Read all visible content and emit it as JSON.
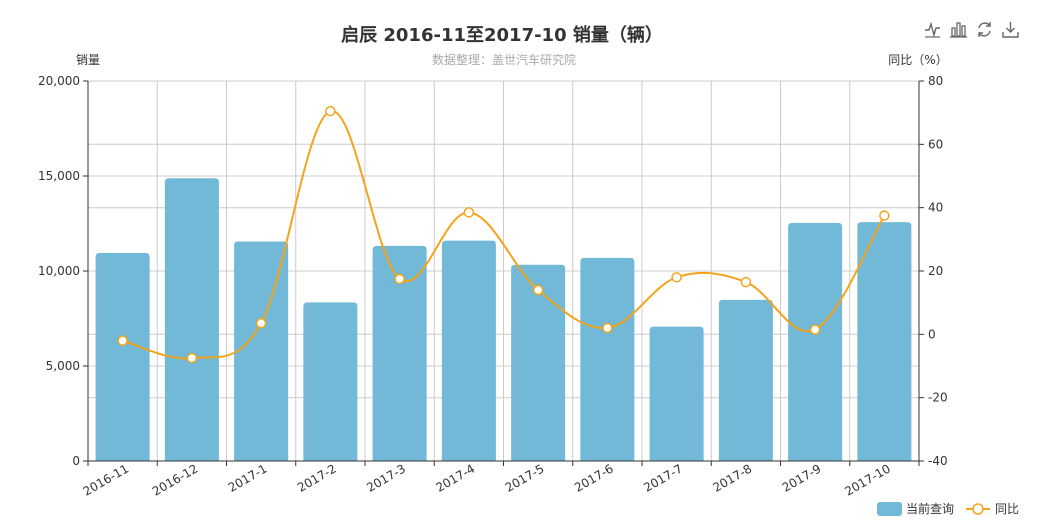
{
  "chart_data": {
    "title": "启辰 2016-11至2017-10 销量（辆）",
    "subtitle": "数据整理：盖世汽车研究院",
    "type": "bar",
    "categories": [
      "2016-11",
      "2016-12",
      "2017-1",
      "2017-2",
      "2017-3",
      "2017-4",
      "2017-5",
      "2017-6",
      "2017-7",
      "2017-8",
      "2017-9",
      "2017-10"
    ],
    "y_left": {
      "label": "销量",
      "min": 0,
      "max": 20000,
      "ticks": [
        0,
        5000,
        10000,
        15000,
        20000
      ],
      "tick_labels": [
        "0",
        "5,000",
        "10,000",
        "15,000",
        "20,000"
      ]
    },
    "y_right": {
      "label": "同比（%）",
      "min": -40,
      "max": 80,
      "ticks": [
        -40,
        -20,
        0,
        20,
        40,
        60,
        80
      ],
      "tick_labels": [
        "-40",
        "-20",
        "0",
        "20",
        "40",
        "60",
        "80"
      ]
    },
    "grid": true,
    "legend_position": "bottom-right",
    "series": [
      {
        "name": "当前查询",
        "type": "bar",
        "axis": "left",
        "color": "#71b9d6",
        "values": [
          10950,
          14880,
          11550,
          8350,
          11320,
          11600,
          10330,
          10690,
          7070,
          8480,
          12530,
          12570
        ]
      },
      {
        "name": "同比",
        "type": "line",
        "axis": "right",
        "color": "#f3a41b",
        "values": [
          -2.0,
          -7.5,
          3.5,
          70.5,
          17.5,
          38.5,
          14.0,
          2.0,
          18.0,
          16.5,
          1.5,
          37.5
        ]
      }
    ]
  },
  "toolbar": {
    "icons": [
      "line-chart-icon",
      "bar-chart-icon",
      "refresh-icon",
      "download-icon"
    ]
  }
}
